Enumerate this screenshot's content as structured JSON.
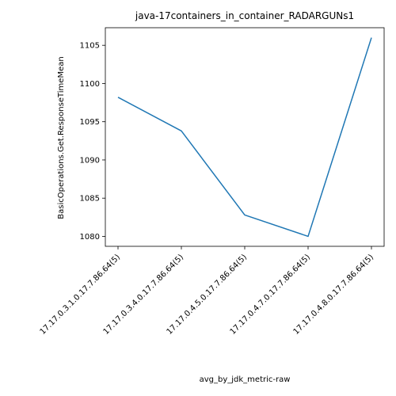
{
  "chart_data": {
    "type": "line",
    "title": "java-17containers_in_container_RADARGUNs1",
    "xlabel": "avg_by_jdk_metric-raw",
    "ylabel": "BasicOperations.Get.ResponseTimeMean",
    "categories": [
      "17.17.0.3.1.0.17.7.86.64(5)",
      "17.17.0.3.4.0.17.7.86.64(5)",
      "17.17.0.4.5.0.17.7.86.64(5)",
      "17.17.0.4.7.0.17.7.86.64(5)",
      "17.17.0.4.8.0.17.7.86.64(5)"
    ],
    "series": [
      {
        "values": [
          1098.2,
          1093.8,
          1082.8,
          1080.0,
          1106.0
        ]
      }
    ],
    "ylim": [
      1078.7,
      1107.3
    ],
    "yticks": [
      1080,
      1085,
      1090,
      1095,
      1100,
      1105
    ],
    "grid": false,
    "line_color": "#1f77b4"
  }
}
